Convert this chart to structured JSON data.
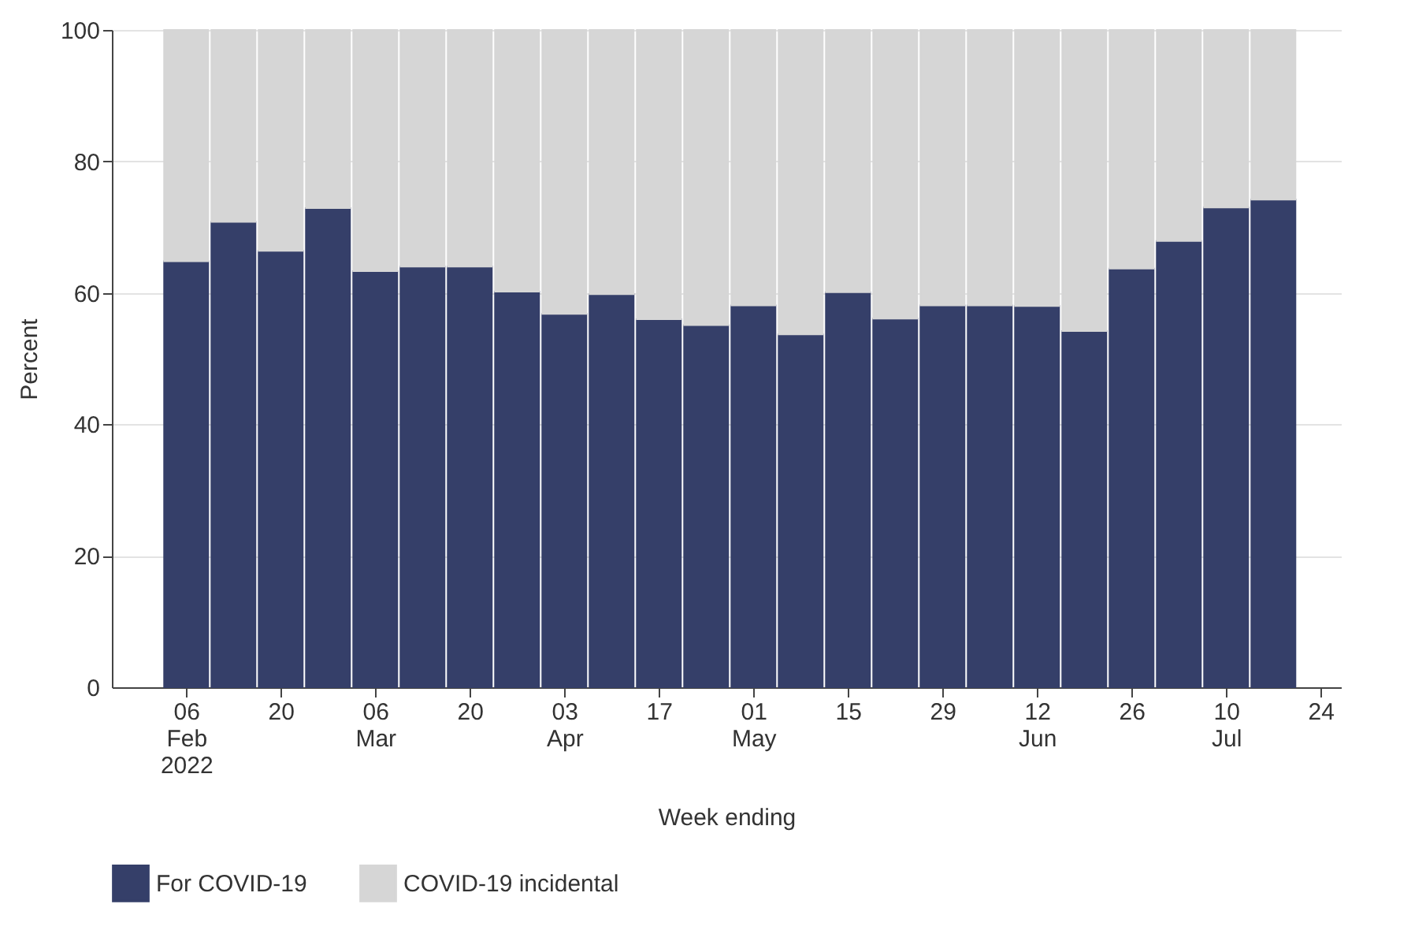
{
  "chart_data": {
    "type": "bar",
    "stacked": true,
    "xlabel": "Week ending",
    "ylabel": "Percent",
    "x": [
      "2022-02-06",
      "2022-02-13",
      "2022-02-20",
      "2022-02-27",
      "2022-03-06",
      "2022-03-13",
      "2022-03-20",
      "2022-03-27",
      "2022-04-03",
      "2022-04-10",
      "2022-04-17",
      "2022-04-24",
      "2022-05-01",
      "2022-05-08",
      "2022-05-15",
      "2022-05-22",
      "2022-05-29",
      "2022-06-05",
      "2022-06-12",
      "2022-06-19",
      "2022-06-26",
      "2022-07-03",
      "2022-07-10",
      "2022-07-17"
    ],
    "series": [
      {
        "name": "For COVID-19",
        "color": "#353f69",
        "values": [
          64.8,
          70.8,
          66.4,
          72.9,
          63.3,
          64.0,
          64.0,
          60.2,
          56.8,
          59.8,
          56.0,
          55.1,
          58.1,
          53.7,
          60.1,
          56.1,
          58.1,
          58.1,
          58.0,
          54.2,
          63.7,
          67.9,
          73.0,
          74.2
        ]
      },
      {
        "name": "COVID-19 incidental",
        "color": "#d6d6d6",
        "values": [
          35.2,
          29.2,
          33.6,
          27.1,
          36.7,
          36.0,
          36.0,
          39.8,
          43.2,
          40.2,
          44.0,
          44.9,
          41.9,
          46.3,
          39.9,
          43.9,
          41.9,
          41.9,
          42.0,
          45.8,
          36.3,
          32.1,
          27.0,
          25.8
        ]
      }
    ],
    "xlim": [
      "2022-01-26",
      "2022-07-27"
    ],
    "xticks": [
      {
        "value": "2022-02-06",
        "label": "06\nFeb\n2022"
      },
      {
        "value": "2022-02-20",
        "label": "20"
      },
      {
        "value": "2022-03-06",
        "label": "06\nMar"
      },
      {
        "value": "2022-03-20",
        "label": "20"
      },
      {
        "value": "2022-04-03",
        "label": "03\nApr"
      },
      {
        "value": "2022-04-17",
        "label": "17"
      },
      {
        "value": "2022-05-01",
        "label": "01\nMay"
      },
      {
        "value": "2022-05-15",
        "label": "15"
      },
      {
        "value": "2022-05-29",
        "label": "29"
      },
      {
        "value": "2022-06-12",
        "label": "12\nJun"
      },
      {
        "value": "2022-06-26",
        "label": "26"
      },
      {
        "value": "2022-07-10",
        "label": "10\nJul"
      },
      {
        "value": "2022-07-24",
        "label": "24"
      }
    ],
    "ylim": [
      0,
      100
    ],
    "yticks": [
      0,
      20,
      40,
      60,
      80,
      100
    ],
    "grid": "y",
    "legend": "bottom left"
  }
}
